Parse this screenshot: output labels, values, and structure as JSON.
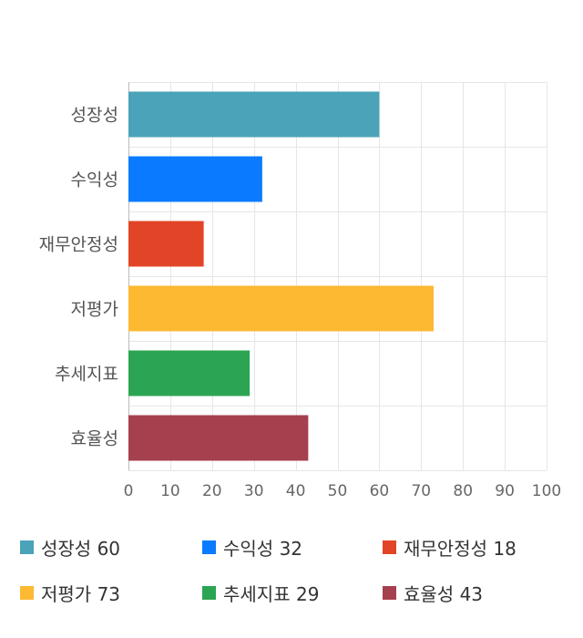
{
  "chart_data": {
    "type": "bar",
    "orientation": "horizontal",
    "categories": [
      "성장성",
      "수익성",
      "재무안정성",
      "저평가",
      "추세지표",
      "효율성"
    ],
    "values": [
      60,
      32,
      18,
      73,
      29,
      43
    ],
    "colors": [
      "#4aa3b8",
      "#0a7bff",
      "#e24427",
      "#fdb932",
      "#2ba553",
      "#a5404f"
    ],
    "xlim": [
      0,
      100
    ],
    "xticks": [
      "0",
      "10",
      "20",
      "30",
      "40",
      "50",
      "60",
      "70",
      "80",
      "90",
      "100"
    ],
    "grid": true,
    "legend_position": "bottom"
  },
  "legend": [
    {
      "label": "성장성",
      "value": "60"
    },
    {
      "label": "수익성",
      "value": "32"
    },
    {
      "label": "재무안정성",
      "value": "18"
    },
    {
      "label": "저평가",
      "value": "73"
    },
    {
      "label": "추세지표",
      "value": "29"
    },
    {
      "label": "효율성",
      "value": "43"
    }
  ]
}
